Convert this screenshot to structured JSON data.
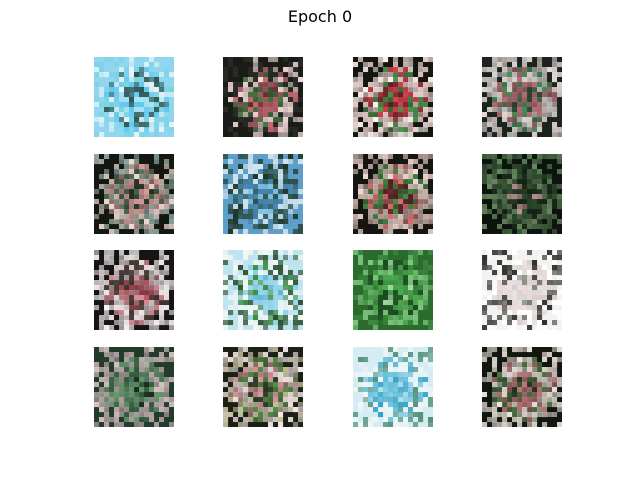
{
  "title": "Epoch 0",
  "grid": {
    "rows": 4,
    "cols": 4
  },
  "samples": [
    {
      "name": "sample-1-1",
      "palette": [
        "#8fd6ee",
        "#5cc8f0",
        "#e6f4f7",
        "#2c5552",
        "#aee5f2",
        "#7bd3e3"
      ]
    },
    {
      "name": "sample-1-2",
      "palette": [
        "#1b1b18",
        "#c96a76",
        "#f0d9d6",
        "#4c7a44",
        "#8b3a43",
        "#2a2f2a"
      ]
    },
    {
      "name": "sample-1-3",
      "palette": [
        "#151612",
        "#d8424d",
        "#ebcfcf",
        "#4e9a4f",
        "#7e2a2f",
        "#fef4ee"
      ]
    },
    {
      "name": "sample-1-4",
      "palette": [
        "#1c241d",
        "#b77078",
        "#d8d2d2",
        "#4c8d5a",
        "#2f4b35",
        "#e7d8d4"
      ]
    },
    {
      "name": "sample-2-1",
      "palette": [
        "#141811",
        "#d49b9a",
        "#f0dcd5",
        "#4f6b51",
        "#2b3a2e",
        "#92a8a3"
      ]
    },
    {
      "name": "sample-2-2",
      "palette": [
        "#5e9ec8",
        "#3f7ea6",
        "#d7e7ef",
        "#2b4e3d",
        "#88c5e6",
        "#1e3628"
      ]
    },
    {
      "name": "sample-2-3",
      "palette": [
        "#161512",
        "#d96e70",
        "#f1dbd2",
        "#4b8c48",
        "#722c2e",
        "#c9b0a9"
      ]
    },
    {
      "name": "sample-2-4",
      "palette": [
        "#0d140e",
        "#2f4e2e",
        "#67865f",
        "#1b2b1a",
        "#b59092",
        "#41613d"
      ]
    },
    {
      "name": "sample-3-1",
      "palette": [
        "#171515",
        "#d88e99",
        "#ece3e4",
        "#58453f",
        "#c75867",
        "#f7f1f1"
      ]
    },
    {
      "name": "sample-3-2",
      "palette": [
        "#bfe4f0",
        "#8cd0ea",
        "#f2f6f4",
        "#3d8c3c",
        "#5eb7d6",
        "#2c5030"
      ]
    },
    {
      "name": "sample-3-3",
      "palette": [
        "#2c6b2e",
        "#4caa50",
        "#7fc77e",
        "#1c4a20",
        "#aedba9",
        "#3b8a3f"
      ]
    },
    {
      "name": "sample-3-4",
      "palette": [
        "#f3f1f1",
        "#d7cdca",
        "#2a2b26",
        "#e6d6d8",
        "#76836f",
        "#ffffff"
      ]
    },
    {
      "name": "sample-4-1",
      "palette": [
        "#223b2b",
        "#6d9c73",
        "#b9a6aa",
        "#3f6b48",
        "#1a2820",
        "#d3c3c2"
      ]
    },
    {
      "name": "sample-4-2",
      "palette": [
        "#1b2018",
        "#d99a9c",
        "#f6e8e6",
        "#5a8c4a",
        "#34472f",
        "#c9c2a0"
      ]
    },
    {
      "name": "sample-4-3",
      "palette": [
        "#d6ecf3",
        "#62c0dd",
        "#eff6f7",
        "#35a3c9",
        "#9fd9ea",
        "#4c8e76"
      ]
    },
    {
      "name": "sample-4-4",
      "palette": [
        "#121711",
        "#b9797a",
        "#efe6dc",
        "#4f7b46",
        "#283a27",
        "#d9cfc8"
      ]
    }
  ]
}
